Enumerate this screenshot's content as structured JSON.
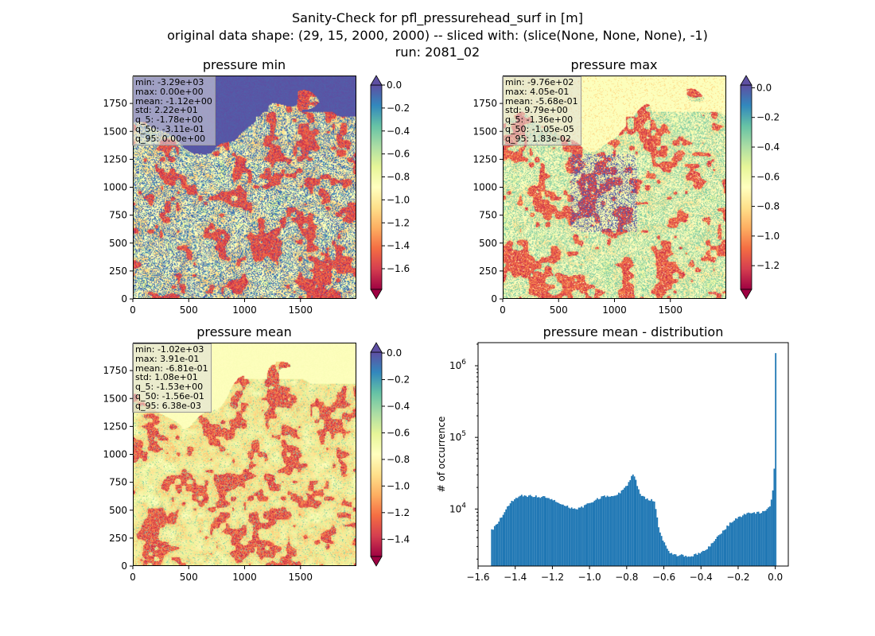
{
  "suptitle": {
    "line1": "Sanity-Check for pfl_pressurehead_surf in [m]",
    "line2": "original data shape: (29, 15, 2000, 2000) -- sliced with: (slice(None, None, None), -1)",
    "line3": "run: 2081_02"
  },
  "colormap": [
    "#9e0142",
    "#d53e4f",
    "#f46d43",
    "#fdae61",
    "#fee08b",
    "#ffffbf",
    "#e6f598",
    "#abdda4",
    "#66c2a5",
    "#3288bd",
    "#5e4fa2"
  ],
  "chart_data": [
    {
      "type": "heatmap",
      "title": "pressure min",
      "xlim": [
        0,
        2000
      ],
      "ylim": [
        0,
        2000
      ],
      "xticks": [
        "0",
        "500",
        "1000",
        "1500"
      ],
      "yticks": [
        "0",
        "250",
        "500",
        "750",
        "1000",
        "1250",
        "1500",
        "1750"
      ],
      "stats": [
        "min: -3.29e+03",
        "max: 0.00e+00",
        "mean: -1.12e+00",
        "std: 2.22e+01",
        "q_5: -1.78e+00",
        "q_50: -3.11e-01",
        "q_95: 0.00e+00"
      ],
      "colorbar": {
        "min": -1.78,
        "max": 0.0,
        "ticks": [
          "0.0",
          "-0.2",
          "-0.4",
          "-0.6",
          "-0.8",
          "-1.0",
          "-1.2",
          "-1.4",
          "-1.6"
        ],
        "extend": "both"
      }
    },
    {
      "type": "heatmap",
      "title": "pressure max",
      "xlim": [
        0,
        2000
      ],
      "ylim": [
        0,
        2000
      ],
      "xticks": [
        "0",
        "500",
        "1000",
        "1500"
      ],
      "yticks": [
        "0",
        "250",
        "500",
        "750",
        "1000",
        "1250",
        "1500",
        "1750"
      ],
      "stats": [
        "min: -9.76e+02",
        "max: 4.05e-01",
        "mean: -5.68e-01",
        "std: 9.79e+00",
        "q_5: -1.36e+00",
        "q_50: -1.05e-05",
        "q_95: 1.83e-02"
      ],
      "colorbar": {
        "min": -1.36,
        "max": 0.0183,
        "ticks": [
          "0.0",
          "-0.2",
          "-0.4",
          "-0.6",
          "-0.8",
          "-1.0",
          "-1.2"
        ],
        "extend": "both"
      }
    },
    {
      "type": "heatmap",
      "title": "pressure mean",
      "xlim": [
        0,
        2000
      ],
      "ylim": [
        0,
        2000
      ],
      "xticks": [
        "0",
        "500",
        "1000",
        "1500"
      ],
      "yticks": [
        "0",
        "250",
        "500",
        "750",
        "1000",
        "1250",
        "1500",
        "1750"
      ],
      "stats": [
        "min: -1.02e+03",
        "max: 3.91e-01",
        "mean: -6.81e-01",
        "std: 1.08e+01",
        "q_5: -1.53e+00",
        "q_50: -1.56e-01",
        "q_95: 6.38e-03"
      ],
      "colorbar": {
        "min": -1.53,
        "max": 0.00638,
        "ticks": [
          "0.0",
          "-0.2",
          "-0.4",
          "-0.6",
          "-0.8",
          "-1.0",
          "-1.2",
          "-1.4"
        ],
        "extend": "both"
      }
    },
    {
      "type": "bar",
      "title": "pressure mean - distribution",
      "ylabel": "# of occurrence",
      "yscale": "log",
      "xlim": [
        -1.6,
        0.07
      ],
      "ylim": [
        1600,
        2100000
      ],
      "xticks": [
        "−1.6",
        "−1.4",
        "−1.2",
        "−1.0",
        "−0.8",
        "−0.6",
        "−0.4",
        "−0.2",
        "0.0"
      ],
      "yticks": [
        "10^4",
        "10^5",
        "10^6"
      ],
      "color": "#1f77b4",
      "bins": {
        "start": -1.53,
        "end": 0.006,
        "count": 200
      },
      "profile": [
        [
          -1.53,
          5000
        ],
        [
          -1.5,
          6000
        ],
        [
          -1.46,
          9000
        ],
        [
          -1.42,
          13000
        ],
        [
          -1.36,
          15500
        ],
        [
          -1.3,
          15000
        ],
        [
          -1.24,
          14500
        ],
        [
          -1.2,
          13500
        ],
        [
          -1.14,
          11500
        ],
        [
          -1.08,
          10000
        ],
        [
          -1.04,
          10500
        ],
        [
          -0.98,
          13000
        ],
        [
          -0.92,
          15000
        ],
        [
          -0.86,
          15500
        ],
        [
          -0.82,
          18000
        ],
        [
          -0.78,
          25000
        ],
        [
          -0.77,
          33000
        ],
        [
          -0.755,
          27000
        ],
        [
          -0.74,
          20000
        ],
        [
          -0.72,
          15000
        ],
        [
          -0.68,
          13500
        ],
        [
          -0.65,
          13000
        ],
        [
          -0.63,
          6000
        ],
        [
          -0.61,
          4000
        ],
        [
          -0.59,
          3000
        ],
        [
          -0.57,
          2500
        ],
        [
          -0.55,
          2300
        ],
        [
          -0.45,
          2200
        ],
        [
          -0.38,
          2600
        ],
        [
          -0.32,
          3800
        ],
        [
          -0.28,
          5000
        ],
        [
          -0.22,
          7200
        ],
        [
          -0.16,
          8500
        ],
        [
          -0.1,
          8800
        ],
        [
          -0.05,
          9200
        ],
        [
          -0.03,
          11000
        ],
        [
          -0.015,
          15000
        ],
        [
          -0.005,
          40000
        ],
        [
          0.006,
          1500000
        ]
      ]
    }
  ]
}
